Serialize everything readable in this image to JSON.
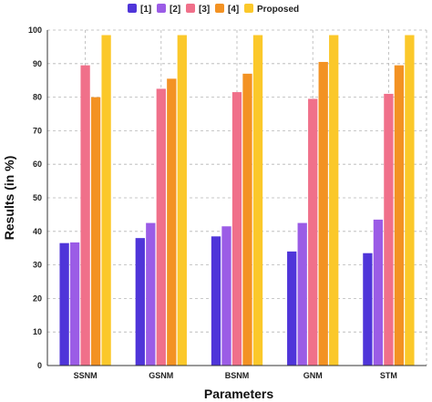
{
  "chart_data": {
    "type": "bar",
    "title": "",
    "xlabel": "Parameters",
    "ylabel": "Results (in %)",
    "ylim": [
      0,
      100
    ],
    "yticks": [
      0,
      10,
      20,
      30,
      40,
      50,
      60,
      70,
      80,
      90,
      100
    ],
    "grid": true,
    "legend_position": "top",
    "categories": [
      "SSNM",
      "GSNM",
      "BSNM",
      "GNM",
      "STM"
    ],
    "series": [
      {
        "name": "[1]",
        "color": "#4f35d9",
        "values": [
          36.5,
          38,
          38.5,
          34,
          33.5
        ]
      },
      {
        "name": "[2]",
        "color": "#9b5ce6",
        "values": [
          36.7,
          42.5,
          41.5,
          42.5,
          43.5
        ]
      },
      {
        "name": "[3]",
        "color": "#f0708a",
        "values": [
          89.5,
          82.5,
          81.5,
          79.5,
          81
        ]
      },
      {
        "name": "[4]",
        "color": "#f39223",
        "values": [
          80,
          85.5,
          87,
          90.5,
          89.5
        ]
      },
      {
        "name": "Proposed",
        "color": "#fbc82a",
        "values": [
          98.5,
          98.5,
          98.5,
          98.5,
          98.5
        ]
      }
    ]
  }
}
